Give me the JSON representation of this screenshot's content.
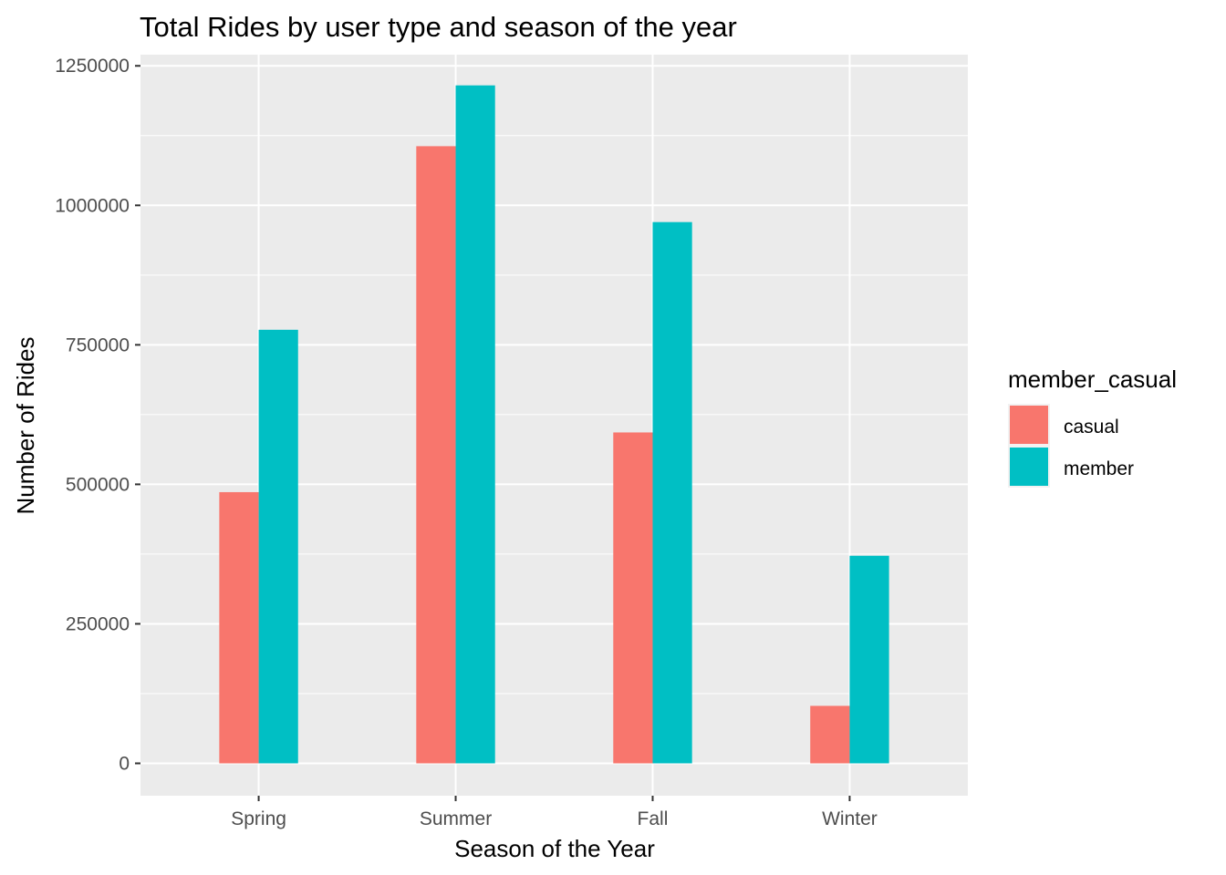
{
  "chart_data": {
    "type": "bar",
    "title": "Total Rides by user type and season of the year",
    "xlabel": "Season of the Year",
    "ylabel": "Number of Rides",
    "categories": [
      "Spring",
      "Summer",
      "Fall",
      "Winter"
    ],
    "series": [
      {
        "name": "casual",
        "color": "#F8766D",
        "values": [
          486000,
          1106000,
          593000,
          103000
        ]
      },
      {
        "name": "member",
        "color": "#00BFC4",
        "values": [
          777000,
          1215000,
          970000,
          372000
        ]
      }
    ],
    "ylim": [
      -58000,
      1270000
    ],
    "yticks": [
      0,
      250000,
      500000,
      750000,
      1000000,
      1250000
    ],
    "ytick_labels": [
      "0",
      "250000",
      "500000",
      "750000",
      "1000000",
      "1250000"
    ],
    "legend": {
      "title": "member_casual",
      "position": "right"
    },
    "panel_background": "#EBEBEB",
    "grid": true
  }
}
